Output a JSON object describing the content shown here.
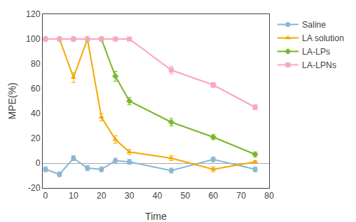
{
  "chart_data": {
    "type": "line",
    "x": [
      0,
      5,
      10,
      15,
      20,
      25,
      30,
      45,
      60,
      75
    ],
    "series": [
      {
        "name": "Saline",
        "color": "#89b8d4",
        "marker": "circle",
        "values": [
          -5,
          -9,
          4,
          -4,
          -5,
          2,
          1,
          -6,
          3,
          -5
        ],
        "errors": [
          2,
          2,
          2,
          2,
          2,
          2,
          2,
          2,
          2,
          2
        ]
      },
      {
        "name": "LA solution",
        "color": "#f5a800",
        "marker": "triangle-up",
        "values": [
          100,
          100,
          69,
          100,
          37,
          19,
          9,
          4,
          -5,
          1
        ],
        "errors": [
          0,
          0,
          4,
          0,
          3,
          3,
          2,
          2,
          2,
          1
        ]
      },
      {
        "name": "LA-LPs",
        "color": "#7ab829",
        "marker": "diamond",
        "values": [
          100,
          100,
          100,
          100,
          100,
          70,
          50,
          33,
          21,
          7
        ],
        "errors": [
          0,
          0,
          0,
          0,
          0,
          4,
          3,
          3,
          2,
          2
        ]
      },
      {
        "name": "LA-LPNs",
        "color": "#f8a8c0",
        "marker": "square",
        "values": [
          100,
          100,
          100,
          100,
          100,
          100,
          100,
          75,
          63,
          45
        ],
        "errors": [
          0,
          0,
          0,
          0,
          0,
          0,
          0,
          3,
          2,
          2
        ]
      }
    ],
    "xlabel": "Time",
    "ylabel": "MPE(%)",
    "xlim": [
      -1,
      80
    ],
    "ylim": [
      -20,
      120
    ],
    "xticks": [
      0,
      10,
      20,
      30,
      40,
      50,
      60,
      70,
      80
    ],
    "yticks": [
      -20,
      0,
      20,
      40,
      60,
      80,
      100,
      120
    ],
    "legend": "upper right",
    "grid": false
  }
}
